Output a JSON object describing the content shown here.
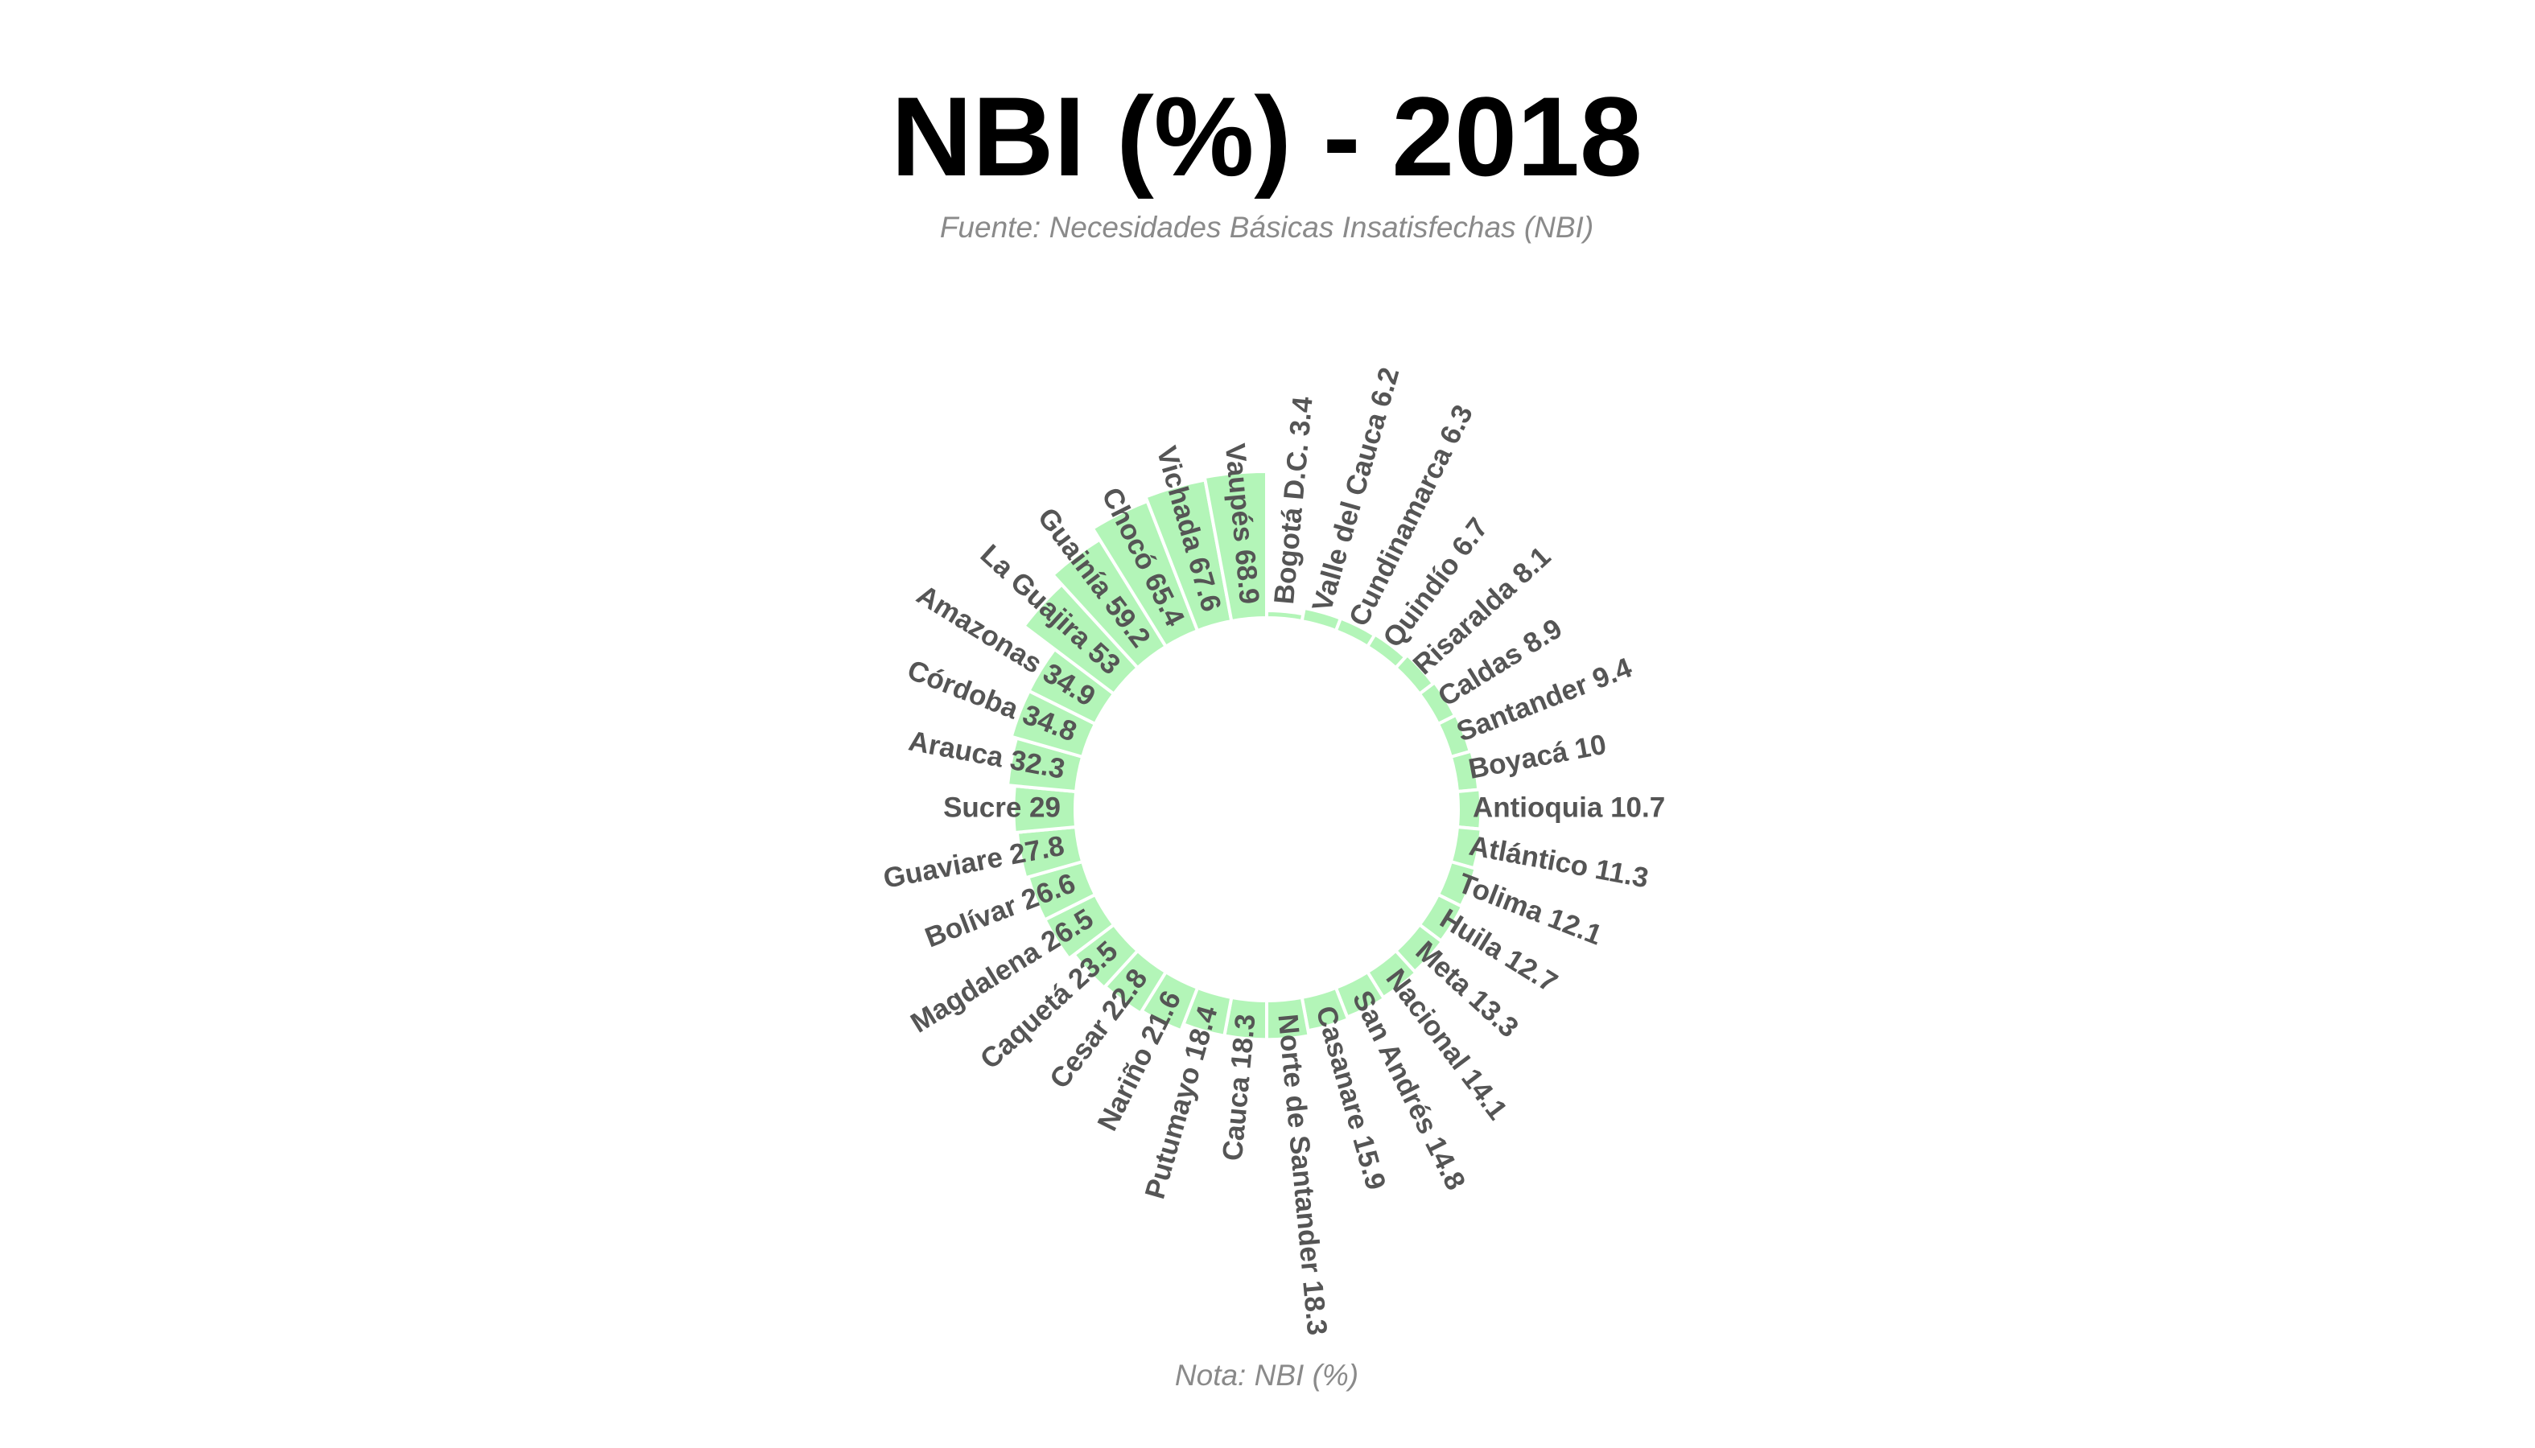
{
  "title": "NBI (%) - 2018",
  "subtitle": "Fuente: Necesidades Básicas Insatisfechas (NBI)",
  "caption": "Nota: NBI (%)",
  "colors": {
    "bar_fill": "#b3f5b8",
    "label": "#555555",
    "subtitle": "#8a8a8a",
    "background": "#ffffff"
  },
  "chart_data": {
    "type": "bar",
    "layout": "circular",
    "title": "NBI (%) - 2018",
    "subtitle": "Fuente: Necesidades Básicas Insatisfechas (NBI)",
    "caption": "Nota: NBI (%)",
    "ylim": [
      0,
      68.9
    ],
    "grid": false,
    "legend": "none",
    "categories": [
      "Bogotá D.C.",
      "Valle del Cauca",
      "Cundinamarca",
      "Quindío",
      "Risaralda",
      "Caldas",
      "Santander",
      "Boyacá",
      "Antioquia",
      "Atlántico",
      "Tolima",
      "Huila",
      "Meta",
      "Nacional",
      "San Andrés",
      "Casanare",
      "Norte de Santander",
      "Cauca",
      "Putumayo",
      "Nariño",
      "Cesar",
      "Caquetá",
      "Magdalena",
      "Bolívar",
      "Guaviare",
      "Sucre",
      "Arauca",
      "Córdoba",
      "Amazonas",
      "La Guajira",
      "Guainía",
      "Chocó",
      "Vichada",
      "Vaupés"
    ],
    "values": [
      3.4,
      6.2,
      6.3,
      6.7,
      8.1,
      8.9,
      9.4,
      10,
      10.7,
      11.3,
      12.1,
      12.7,
      13.3,
      14.1,
      14.8,
      15.9,
      18.3,
      18.3,
      18.4,
      21.6,
      22.8,
      23.5,
      26.5,
      26.6,
      27.8,
      29,
      32.3,
      34.8,
      34.9,
      53,
      59.2,
      65.4,
      67.6,
      68.9
    ]
  }
}
